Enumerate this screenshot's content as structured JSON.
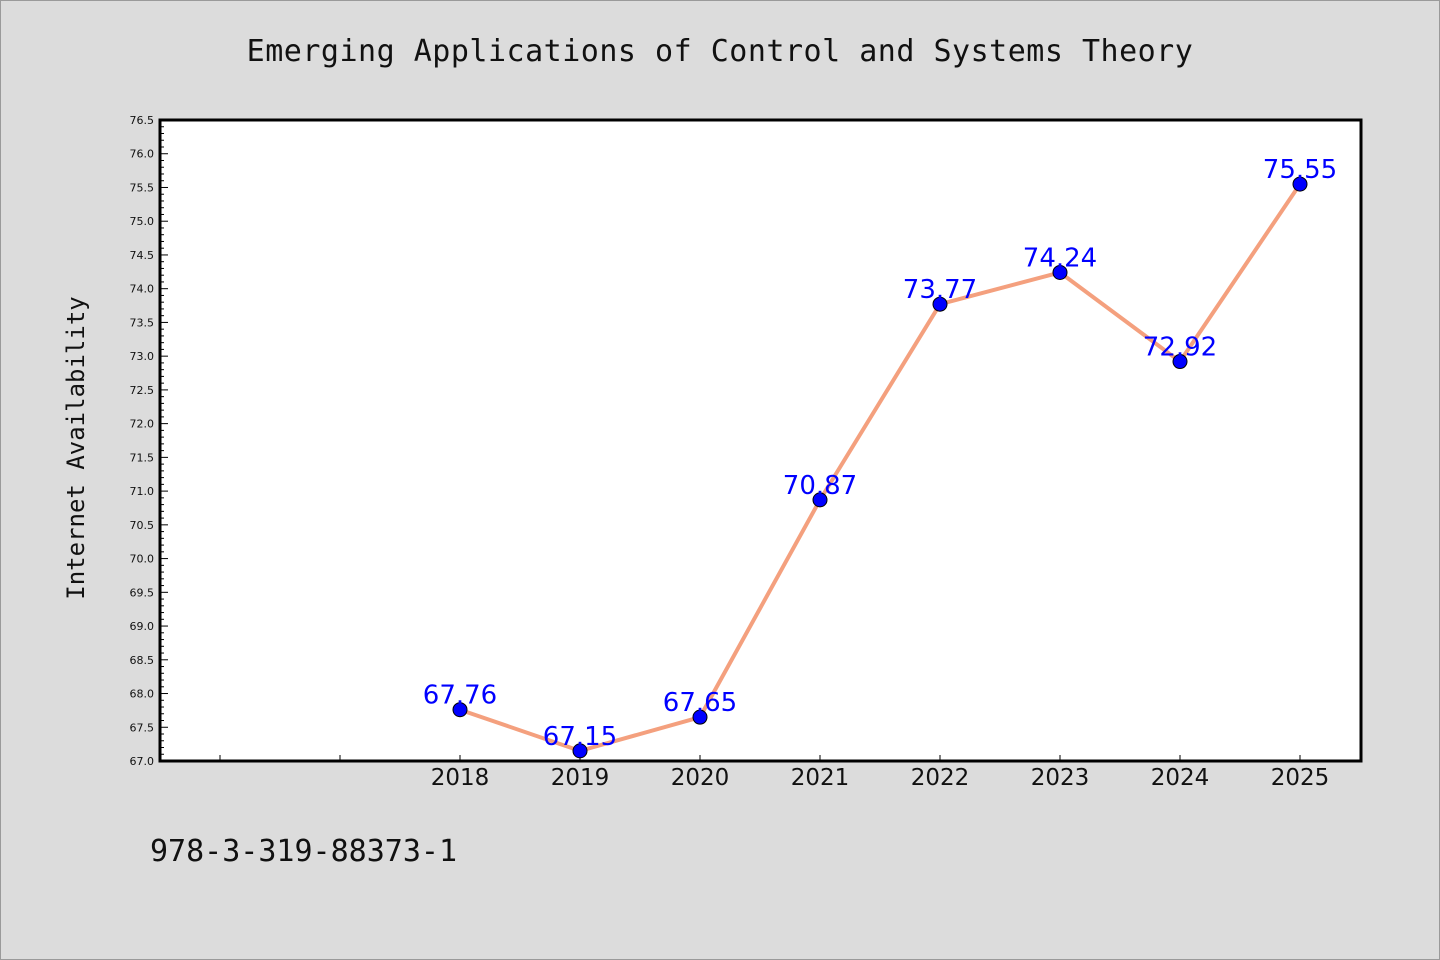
{
  "chart_data": {
    "type": "line",
    "title": "Emerging Applications of Control and Systems Theory",
    "xlabel": "",
    "ylabel": "Internet Availability",
    "categories": [
      "2018",
      "2019",
      "2020",
      "2021",
      "2022",
      "2023",
      "2024",
      "2025"
    ],
    "series": [
      {
        "values": [
          67.76,
          67.15,
          67.65,
          70.87,
          73.77,
          74.24,
          72.92,
          75.55
        ],
        "data_labels": [
          "67.76",
          "67.15",
          "67.65",
          "70.87",
          "73.77",
          "74.24",
          "72.92",
          "75.55"
        ],
        "line_color": "#f4a07e",
        "marker_color": "#0000ff"
      }
    ],
    "ylim": [
      67.0,
      76.5
    ],
    "yticks": [
      "67.0",
      "67.5",
      "68.0",
      "68.5",
      "69.0",
      "69.5",
      "70.0",
      "70.5",
      "71.0",
      "71.5",
      "72.0",
      "72.5",
      "73.0",
      "73.5",
      "74.0",
      "74.5",
      "75.0",
      "75.5",
      "76.0",
      "76.5"
    ],
    "grid": false,
    "legend": "none",
    "background_color": "#dcdcdc",
    "plot_background": "#ffffff"
  },
  "footer": {
    "code": "978-3-319-88373-1"
  }
}
